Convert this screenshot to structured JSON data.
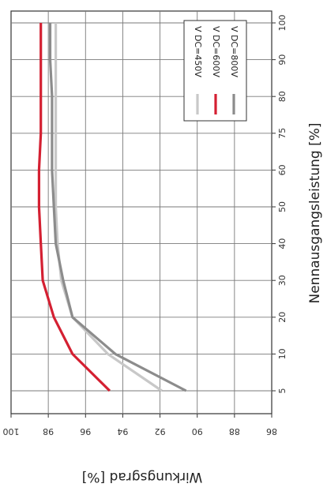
{
  "chart_data": {
    "type": "line",
    "orientation": "rotated-90-clockwise",
    "xlabel": "Nennausgangsleistung [%]",
    "ylabel": "Wirkungsgrad [%]",
    "x_categories": [
      "5",
      "10",
      "20",
      "30",
      "40",
      "50",
      "60",
      "75",
      "80",
      "90",
      "100"
    ],
    "ylim": [
      86,
      100
    ],
    "y_ticks": [
      "86",
      "88",
      "90",
      "92",
      "94",
      "96",
      "98",
      "100"
    ],
    "grid": true,
    "legend": "top-right",
    "series": [
      {
        "name": "V DC=450V",
        "color": "#c8c8c8",
        "values": [
          91.9,
          94.8,
          96.7,
          97.3,
          97.5,
          97.6,
          97.6,
          97.6,
          97.6,
          97.6,
          97.6
        ]
      },
      {
        "name": "V DC=600V",
        "color": "#d42032",
        "values": [
          94.7,
          96.7,
          97.7,
          98.3,
          98.4,
          98.5,
          98.5,
          98.4,
          98.4,
          98.4,
          98.4
        ]
      },
      {
        "name": "V DC=800V",
        "color": "#8c8c8c",
        "values": [
          90.6,
          94.4,
          96.7,
          97.2,
          97.6,
          97.7,
          97.8,
          97.8,
          97.8,
          97.9,
          97.9
        ]
      }
    ]
  }
}
